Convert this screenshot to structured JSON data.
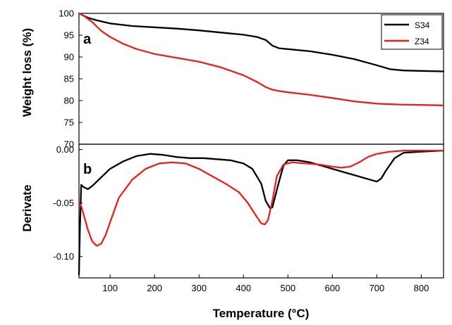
{
  "chart_data": [
    {
      "type": "line",
      "panel_label": "a",
      "ylabel": "Weight loss (%)",
      "xlim": [
        30,
        850
      ],
      "ylim": [
        70,
        100
      ],
      "yticks": [
        70,
        75,
        80,
        85,
        90,
        95,
        100
      ],
      "legend": {
        "placement": "top-right",
        "entries": [
          "S34",
          "Z34"
        ]
      },
      "series": [
        {
          "name": "S34",
          "color": "#000000",
          "x": [
            30,
            40,
            50,
            70,
            100,
            150,
            200,
            250,
            300,
            350,
            400,
            430,
            450,
            465,
            480,
            500,
            550,
            600,
            650,
            700,
            730,
            760,
            800,
            850
          ],
          "y": [
            100,
            99.5,
            99,
            98.4,
            97.7,
            97.1,
            96.8,
            96.5,
            96.1,
            95.6,
            95.1,
            94.6,
            93.9,
            92.6,
            92.0,
            91.8,
            91.3,
            90.5,
            89.5,
            88.1,
            87.2,
            86.9,
            86.8,
            86.7
          ]
        },
        {
          "name": "Z34",
          "color": "#e8201c",
          "x": [
            30,
            40,
            60,
            80,
            100,
            130,
            160,
            200,
            250,
            300,
            350,
            400,
            430,
            450,
            465,
            480,
            500,
            550,
            600,
            650,
            700,
            750,
            800,
            850
          ],
          "y": [
            100,
            99.5,
            98,
            96,
            94.6,
            93.0,
            91.8,
            90.7,
            89.8,
            88.9,
            87.6,
            85.8,
            84.3,
            83.1,
            82.5,
            82.2,
            81.9,
            81.3,
            80.6,
            79.8,
            79.3,
            79.1,
            79.0,
            78.9
          ]
        }
      ]
    },
    {
      "type": "line",
      "panel_label": "b",
      "xlabel": "Temperature (°C)",
      "ylabel": "Derivate",
      "xlim": [
        30,
        850
      ],
      "ylim": [
        -0.12,
        0.005
      ],
      "xticks": [
        100,
        200,
        300,
        400,
        500,
        600,
        700,
        800
      ],
      "yticks": [
        -0.1,
        -0.05,
        0.0
      ],
      "ytick_labels": [
        "-0.10",
        "-0.05",
        "0.00"
      ],
      "series": [
        {
          "name": "S34",
          "color": "#000000",
          "x": [
            30,
            32,
            35,
            40,
            50,
            60,
            80,
            100,
            130,
            160,
            190,
            220,
            250,
            280,
            310,
            340,
            370,
            400,
            420,
            440,
            450,
            460,
            465,
            470,
            480,
            490,
            500,
            520,
            550,
            600,
            650,
            700,
            710,
            720,
            740,
            760,
            800,
            850
          ],
          "y": [
            -0.117,
            -0.075,
            -0.033,
            -0.035,
            -0.037,
            -0.034,
            -0.026,
            -0.018,
            -0.011,
            -0.006,
            -0.004,
            -0.005,
            -0.007,
            -0.008,
            -0.008,
            -0.009,
            -0.01,
            -0.013,
            -0.018,
            -0.032,
            -0.048,
            -0.055,
            -0.054,
            -0.046,
            -0.03,
            -0.015,
            -0.01,
            -0.01,
            -0.012,
            -0.018,
            -0.024,
            -0.03,
            -0.027,
            -0.02,
            -0.008,
            -0.003,
            -0.002,
            -0.001
          ]
        },
        {
          "name": "Z34",
          "color": "#e8201c",
          "x": [
            30,
            35,
            40,
            50,
            60,
            70,
            80,
            90,
            100,
            120,
            150,
            180,
            210,
            240,
            270,
            300,
            330,
            360,
            390,
            410,
            430,
            440,
            448,
            455,
            465,
            475,
            490,
            510,
            540,
            570,
            600,
            620,
            640,
            660,
            680,
            700,
            730,
            760,
            800,
            850
          ],
          "y": [
            -0.05,
            -0.053,
            -0.06,
            -0.075,
            -0.086,
            -0.09,
            -0.088,
            -0.08,
            -0.068,
            -0.045,
            -0.028,
            -0.018,
            -0.013,
            -0.012,
            -0.013,
            -0.018,
            -0.025,
            -0.032,
            -0.04,
            -0.05,
            -0.063,
            -0.069,
            -0.07,
            -0.066,
            -0.048,
            -0.025,
            -0.014,
            -0.012,
            -0.013,
            -0.014,
            -0.016,
            -0.017,
            -0.016,
            -0.012,
            -0.007,
            -0.004,
            -0.002,
            -0.001,
            -0.001,
            -0.001
          ]
        }
      ]
    }
  ]
}
